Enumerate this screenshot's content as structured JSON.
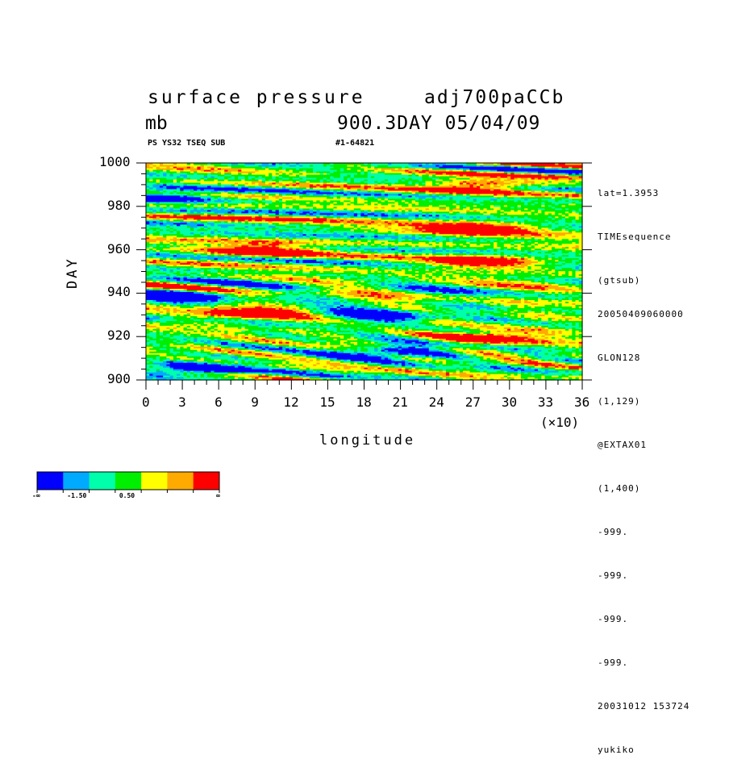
{
  "header": {
    "title_left": "surface pressure",
    "title_right": "adj700paCCb",
    "units": "mb",
    "time_label": "900.3DAY 05/04/09",
    "sub_left": "PS YS32 TSEQ SUB",
    "sub_right": "#1-64821"
  },
  "side_info": {
    "lines_top": [
      "lat=1.3953",
      "TIMEsequence",
      "(gtsub)"
    ],
    "lines_bottom": [
      "20050409060000",
      "GLON128",
      "(1,129)",
      "@EXTAX01",
      "(1,400)",
      "-999.",
      "-999.",
      "-999.",
      "-999.",
      "20031012 153724",
      "yukiko"
    ]
  },
  "colorbar": {
    "colors": [
      "#0000ff",
      "#00aaff",
      "#00ffaa",
      "#00ee00",
      "#ffff00",
      "#ffaa00",
      "#ff0000"
    ],
    "labels": [
      "-∞",
      "-1.50",
      "0.50",
      "∞"
    ]
  },
  "chart_data": {
    "type": "heatmap",
    "title": "surface pressure",
    "xlabel": "longitude",
    "ylabel": "DAY",
    "x_multiplier_label": "(×10)",
    "xlim": [
      0,
      36
    ],
    "ylim": [
      900,
      1000
    ],
    "x_ticks": [
      "0",
      "3",
      "6",
      "9",
      "12",
      "15",
      "18",
      "21",
      "24",
      "27",
      "30",
      "33",
      "36"
    ],
    "y_ticks": [
      "900",
      "920",
      "940",
      "960",
      "980",
      "1000"
    ],
    "color_levels": [
      "-∞",
      "-1.50",
      "0.50",
      "∞"
    ],
    "notable_features": [
      {
        "level": "low",
        "lon": 2.5,
        "day": 939
      },
      {
        "level": "low",
        "lon": 20.5,
        "day": 913
      },
      {
        "level": "low",
        "lon": 4.0,
        "day": 905
      },
      {
        "level": "low",
        "lon": 19.5,
        "day": 930
      },
      {
        "level": "low",
        "lon": 1.5,
        "day": 985
      },
      {
        "level": "high",
        "lon": 8.5,
        "day": 931
      },
      {
        "level": "high",
        "lon": 9.5,
        "day": 960
      },
      {
        "level": "high",
        "lon": 28.0,
        "day": 955
      },
      {
        "level": "high",
        "lon": 29.0,
        "day": 920
      },
      {
        "level": "high",
        "lon": 27.5,
        "day": 990
      },
      {
        "level": "high",
        "lon": 27.0,
        "day": 970
      }
    ]
  }
}
